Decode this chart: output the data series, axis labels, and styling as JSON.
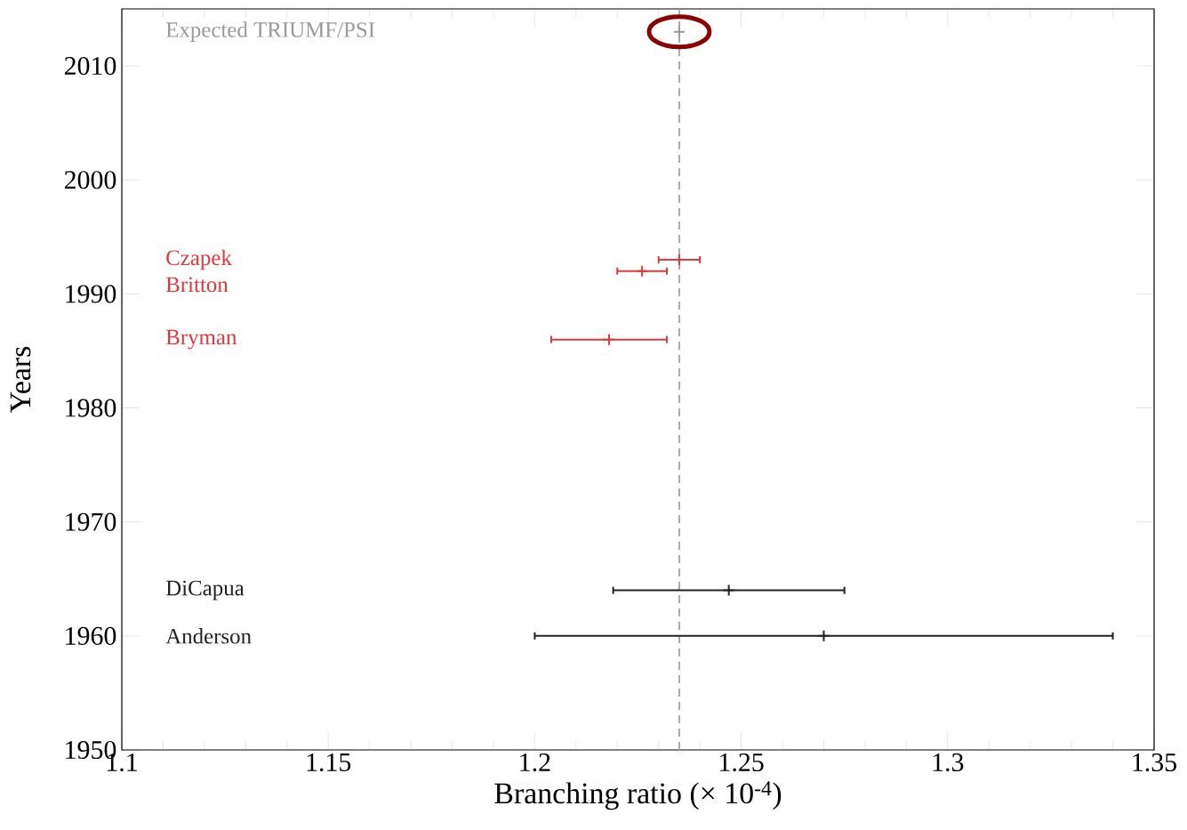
{
  "chart_data": {
    "type": "scatter",
    "xlabel": "Branching ratio (× 10$^{-4}$)",
    "ylabel": "Years",
    "xlim": [
      1.1,
      1.35
    ],
    "xticks": [
      1.1,
      1.15,
      1.2,
      1.25,
      1.3,
      1.35
    ],
    "ylim": [
      1950,
      2015
    ],
    "yticks": [
      1950,
      1960,
      1970,
      1980,
      1990,
      2000,
      2010
    ],
    "grid": false,
    "marker": "cross",
    "annotations": [
      "Expected TRIUMF/PSI",
      "Czapek",
      "Britton",
      "Bryman",
      "DiCapua",
      "Anderson"
    ],
    "ref_lines": [
      {
        "axis": "x",
        "value": 1.235,
        "color": "#aaaaaa",
        "line_style": "dashed"
      }
    ],
    "series": [
      {
        "color": "#999999",
        "x": [
          1.235
        ],
        "values": [
          2013
        ],
        "xerrors": [
          null
        ]
      },
      {
        "color": "#e0393b",
        "x": [
          1.235
        ],
        "values": [
          1993
        ],
        "xerrors": [
          0.005
        ]
      },
      {
        "color": "#e0393b",
        "x": [
          1.226
        ],
        "values": [
          1992
        ],
        "xerrors": [
          0.006
        ]
      },
      {
        "color": "#e0393b",
        "x": [
          1.218
        ],
        "values": [
          1986
        ],
        "xerrors": [
          0.014
        ]
      },
      {
        "color": "#222222",
        "x": [
          1.247
        ],
        "values": [
          1964
        ],
        "xerrors": [
          0.028
        ]
      },
      {
        "color": "#222222",
        "x": [
          1.27
        ],
        "values": [
          1960
        ],
        "xerrors": [
          0.07
        ]
      }
    ]
  }
}
